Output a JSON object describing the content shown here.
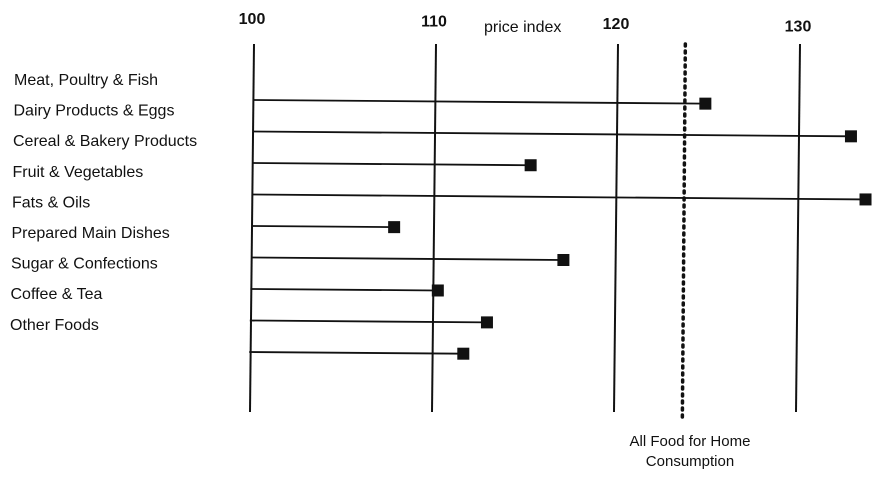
{
  "chart_data": {
    "type": "bar",
    "title": "",
    "axis_title": "price index",
    "categories": [
      "Meat, Poultry & Fish",
      "Dairy Products & Eggs",
      "Cereal & Bakery Products",
      "Fruit & Vegetables",
      "Fats & Oils",
      "Prepared Main Dishes",
      "Sugar & Confections",
      "Coffee & Tea",
      "Other Foods"
    ],
    "values": [
      124.8,
      132.8,
      115.2,
      133.6,
      107.7,
      117.0,
      110.1,
      112.8,
      111.5
    ],
    "baseline": 100,
    "xlim": [
      100,
      134
    ],
    "ticks": [
      100,
      110,
      120,
      130
    ],
    "tick_labels": [
      "100",
      "110",
      "120",
      "130"
    ],
    "reference_line": {
      "value": 123.7,
      "label_lines": [
        "All Food for Home",
        "Consumption"
      ]
    },
    "marker": "square",
    "orientation": "horizontal",
    "color": "#111111"
  }
}
